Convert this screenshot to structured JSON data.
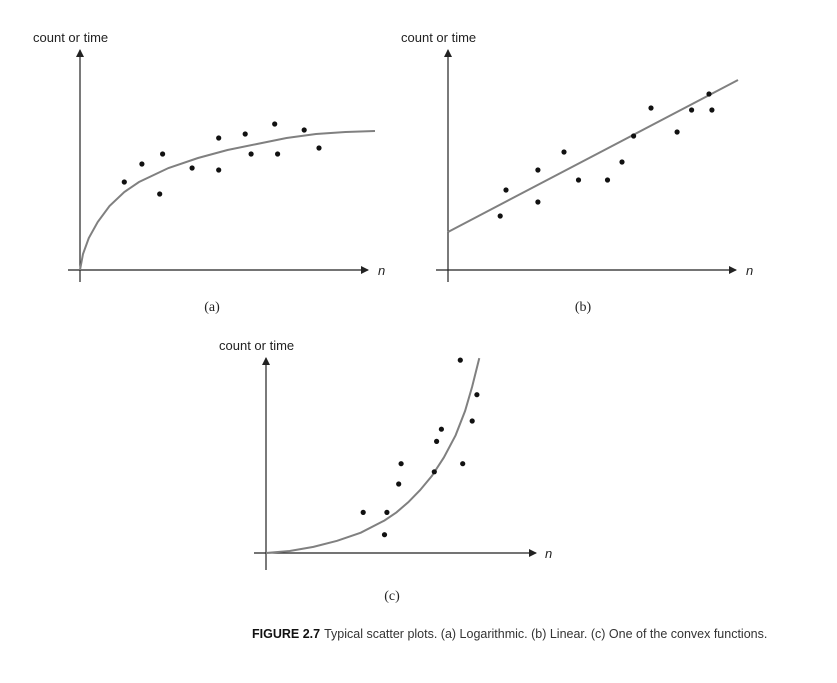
{
  "caption": {
    "label": "FIGURE 2.7",
    "text": "Typical scatter plots. (a) Logarithmic. (b) Linear. (c) One of the convex functions."
  },
  "colors": {
    "curve": "#808080",
    "points": "#111111",
    "axes": "#222222"
  },
  "chart_data": [
    {
      "type": "scatter",
      "panel_label": "(a)",
      "ylabel": "count or time",
      "xlabel": "n",
      "xlim": [
        0,
        100
      ],
      "ylim": [
        0,
        100
      ],
      "grid": false,
      "points": [
        {
          "x": 15,
          "y": 44
        },
        {
          "x": 21,
          "y": 53
        },
        {
          "x": 27,
          "y": 38
        },
        {
          "x": 28,
          "y": 58
        },
        {
          "x": 38,
          "y": 51
        },
        {
          "x": 47,
          "y": 66
        },
        {
          "x": 47,
          "y": 50
        },
        {
          "x": 56,
          "y": 68
        },
        {
          "x": 58,
          "y": 58
        },
        {
          "x": 66,
          "y": 73
        },
        {
          "x": 67,
          "y": 58
        },
        {
          "x": 76,
          "y": 70
        },
        {
          "x": 81,
          "y": 61
        }
      ],
      "trend": {
        "kind": "logarithmic",
        "points": [
          {
            "x": 0,
            "y": 0
          },
          {
            "x": 1,
            "y": 8
          },
          {
            "x": 3,
            "y": 16
          },
          {
            "x": 6,
            "y": 24
          },
          {
            "x": 10,
            "y": 32
          },
          {
            "x": 15,
            "y": 39
          },
          {
            "x": 20,
            "y": 44
          },
          {
            "x": 30,
            "y": 51
          },
          {
            "x": 40,
            "y": 56
          },
          {
            "x": 50,
            "y": 60
          },
          {
            "x": 60,
            "y": 63
          },
          {
            "x": 70,
            "y": 66
          },
          {
            "x": 80,
            "y": 68
          },
          {
            "x": 90,
            "y": 69
          },
          {
            "x": 100,
            "y": 69.5
          }
        ]
      }
    },
    {
      "type": "scatter",
      "panel_label": "(b)",
      "ylabel": "count or time",
      "xlabel": "n",
      "xlim": [
        0,
        100
      ],
      "ylim": [
        0,
        100
      ],
      "grid": false,
      "points": [
        {
          "x": 18,
          "y": 27
        },
        {
          "x": 20,
          "y": 40
        },
        {
          "x": 31,
          "y": 34
        },
        {
          "x": 31,
          "y": 50
        },
        {
          "x": 40,
          "y": 59
        },
        {
          "x": 45,
          "y": 45
        },
        {
          "x": 55,
          "y": 45
        },
        {
          "x": 60,
          "y": 54
        },
        {
          "x": 64,
          "y": 67
        },
        {
          "x": 70,
          "y": 81
        },
        {
          "x": 79,
          "y": 69
        },
        {
          "x": 84,
          "y": 80
        },
        {
          "x": 90,
          "y": 88
        },
        {
          "x": 91,
          "y": 80
        }
      ],
      "trend": {
        "kind": "linear",
        "points": [
          {
            "x": 0,
            "y": 19
          },
          {
            "x": 100,
            "y": 95
          }
        ]
      }
    },
    {
      "type": "scatter",
      "panel_label": "(c)",
      "ylabel": "count or time",
      "xlabel": "n",
      "xlim": [
        0,
        100
      ],
      "ylim": [
        0,
        100
      ],
      "grid": false,
      "points": [
        {
          "x": 41,
          "y": 20
        },
        {
          "x": 50,
          "y": 9
        },
        {
          "x": 51,
          "y": 20
        },
        {
          "x": 56,
          "y": 34
        },
        {
          "x": 57,
          "y": 44
        },
        {
          "x": 71,
          "y": 40
        },
        {
          "x": 72,
          "y": 55
        },
        {
          "x": 74,
          "y": 61
        },
        {
          "x": 82,
          "y": 95
        },
        {
          "x": 83,
          "y": 44
        },
        {
          "x": 87,
          "y": 65
        },
        {
          "x": 89,
          "y": 78
        }
      ],
      "trend": {
        "kind": "convex",
        "points": [
          {
            "x": 0,
            "y": 0
          },
          {
            "x": 10,
            "y": 1
          },
          {
            "x": 20,
            "y": 3
          },
          {
            "x": 30,
            "y": 6
          },
          {
            "x": 40,
            "y": 10
          },
          {
            "x": 50,
            "y": 16
          },
          {
            "x": 55,
            "y": 20
          },
          {
            "x": 60,
            "y": 25
          },
          {
            "x": 65,
            "y": 31
          },
          {
            "x": 70,
            "y": 38
          },
          {
            "x": 75,
            "y": 47
          },
          {
            "x": 80,
            "y": 58
          },
          {
            "x": 84,
            "y": 70
          },
          {
            "x": 87,
            "y": 82
          },
          {
            "x": 90,
            "y": 96
          }
        ]
      }
    }
  ]
}
